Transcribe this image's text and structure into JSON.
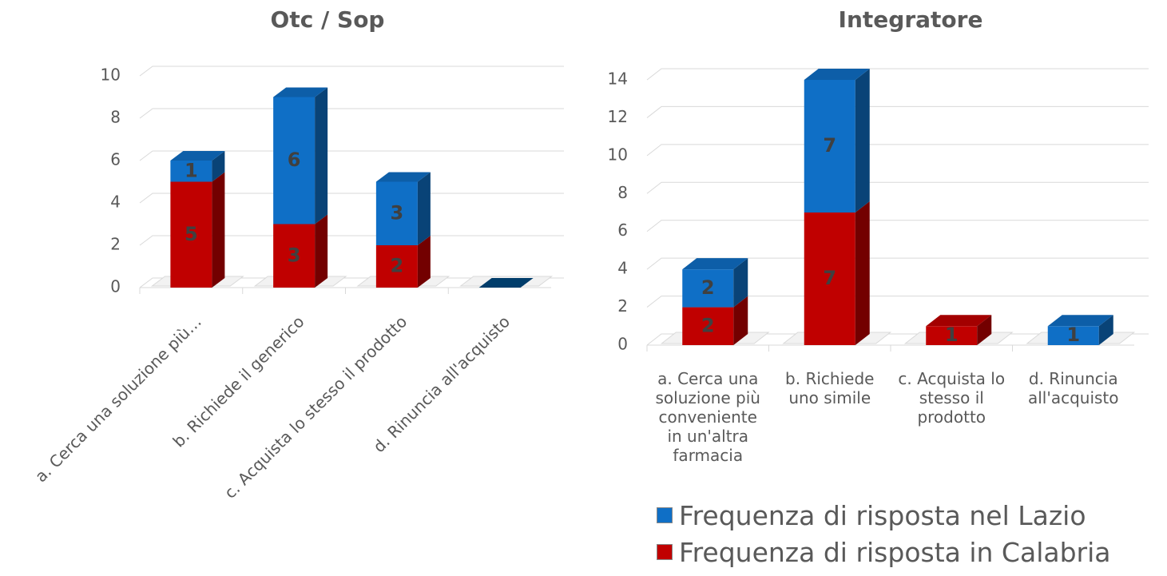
{
  "chart_data": [
    {
      "type": "bar3d",
      "title": "Otc / Sop",
      "categories": [
        "a. Cerca una soluzione più…",
        "b. Richiede il generico",
        "c. Acquista lo stesso il prodotto",
        "d. Rinuncia all'acquisto"
      ],
      "series": [
        {
          "color": "#c00000",
          "values": [
            5,
            3,
            2,
            0
          ]
        },
        {
          "color": "#0f6fc6",
          "values": [
            1,
            6,
            3,
            0
          ]
        }
      ],
      "ylim": [
        0,
        10
      ],
      "yticks": [
        0,
        2,
        4,
        6,
        8,
        10
      ],
      "grid": true
    },
    {
      "type": "bar3d",
      "title": "Integratore",
      "categories": [
        "a. Cerca una soluzione più conveniente in un'altra farmacia",
        "b. Richiede uno simile",
        "c. Acquista lo stesso il prodotto",
        "d. Rinuncia all'acquisto"
      ],
      "series": [
        {
          "name": "Frequenza di risposta in Calabria",
          "color": "#c00000",
          "values": [
            2,
            7,
            1,
            0
          ]
        },
        {
          "name": "Frequenza di risposta nel Lazio",
          "color": "#0f6fc6",
          "values": [
            2,
            7,
            0,
            1
          ]
        }
      ],
      "ylim": [
        0,
        14
      ],
      "yticks": [
        0,
        2,
        4,
        6,
        8,
        10,
        12,
        14
      ],
      "grid": true
    }
  ]
}
